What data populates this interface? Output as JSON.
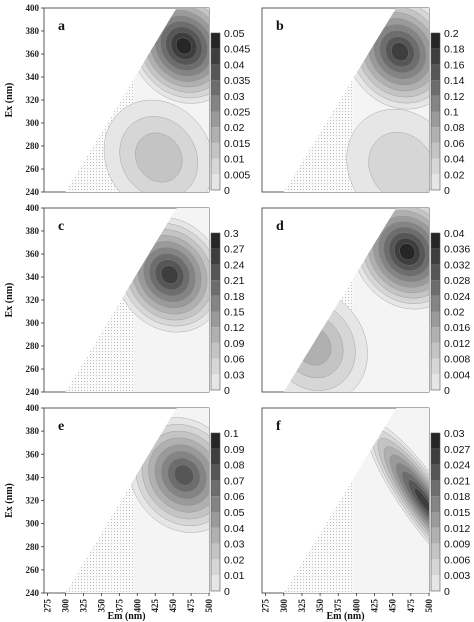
{
  "chart_data": [
    {
      "type": "heatmap",
      "panel": "a",
      "xlabel": "",
      "ylabel": "Ex (nm)",
      "xlim": [
        270,
        500
      ],
      "ylim": [
        240,
        400
      ],
      "yticks": [
        "240",
        "260",
        "280",
        "300",
        "320",
        "340",
        "360",
        "380",
        "400"
      ],
      "xticks": [],
      "colorbar": [
        "0",
        "0.005",
        "0.01",
        "0.015",
        "0.02",
        "0.025",
        "0.03",
        "0.035",
        "0.04",
        "0.045",
        "0.05"
      ],
      "peaks": [
        {
          "em": 465,
          "ex": 367,
          "level": 0.95
        },
        {
          "em": 430,
          "ex": 270,
          "level": 0.25
        }
      ]
    },
    {
      "type": "heatmap",
      "panel": "b",
      "xlabel": "",
      "ylabel": "",
      "xlim": [
        270,
        500
      ],
      "ylim": [
        240,
        400
      ],
      "yticks": [],
      "xticks": [],
      "colorbar": [
        "0",
        "0.02",
        "0.04",
        "0.06",
        "0.08",
        "0.1",
        "0.12",
        "0.14",
        "0.16",
        "0.18",
        "0.2"
      ],
      "peaks": [
        {
          "em": 460,
          "ex": 362,
          "level": 0.9
        },
        {
          "em": 462,
          "ex": 262,
          "level": 0.2
        }
      ]
    },
    {
      "type": "heatmap",
      "panel": "c",
      "xlabel": "",
      "ylabel": "Ex (nm)",
      "xlim": [
        270,
        500
      ],
      "ylim": [
        240,
        400
      ],
      "yticks": [
        "240",
        "260",
        "280",
        "300",
        "320",
        "340",
        "360",
        "380",
        "400"
      ],
      "xticks": [],
      "colorbar": [
        "0",
        "0.03",
        "0.06",
        "0.09",
        "0.12",
        "0.15",
        "0.18",
        "0.21",
        "0.24",
        "0.27",
        "0.3"
      ],
      "peaks": [
        {
          "em": 445,
          "ex": 342,
          "level": 0.85
        }
      ]
    },
    {
      "type": "heatmap",
      "panel": "d",
      "xlabel": "",
      "ylabel": "",
      "xlim": [
        270,
        500
      ],
      "ylim": [
        240,
        400
      ],
      "yticks": [],
      "xticks": [],
      "colorbar": [
        "0",
        "0.004",
        "0.008",
        "0.012",
        "0.016",
        "0.02",
        "0.024",
        "0.028",
        "0.032",
        "0.036",
        "0.04"
      ],
      "peaks": [
        {
          "em": 470,
          "ex": 362,
          "level": 0.97
        },
        {
          "em": 340,
          "ex": 280,
          "level": 0.4
        }
      ]
    },
    {
      "type": "heatmap",
      "panel": "e",
      "xlabel": "Em (nm)",
      "ylabel": "Ex (nm)",
      "xlim": [
        270,
        500
      ],
      "ylim": [
        240,
        400
      ],
      "yticks": [
        "240",
        "260",
        "280",
        "300",
        "320",
        "340",
        "360",
        "380",
        "400"
      ],
      "xticks": [
        "275",
        "300",
        "325",
        "350",
        "375",
        "400",
        "425",
        "450",
        "475",
        "500"
      ],
      "colorbar": [
        "0",
        "0.01",
        "0.02",
        "0.03",
        "0.04",
        "0.05",
        "0.06",
        "0.07",
        "0.08",
        "0.09",
        "0.1"
      ],
      "peaks": [
        {
          "em": 465,
          "ex": 342,
          "level": 0.8
        }
      ]
    },
    {
      "type": "heatmap",
      "panel": "f",
      "xlabel": "Em (nm)",
      "ylabel": "",
      "xlim": [
        270,
        500
      ],
      "ylim": [
        240,
        400
      ],
      "yticks": [],
      "xticks": [
        "275",
        "300",
        "325",
        "350",
        "375",
        "400",
        "425",
        "450",
        "475",
        "500"
      ],
      "colorbar": [
        "0",
        "0.003",
        "0.006",
        "0.009",
        "0.012",
        "0.015",
        "0.018",
        "0.021",
        "0.024",
        "0.027",
        "0.03"
      ],
      "peaks": [
        {
          "em": 492,
          "ex": 320,
          "level": 0.9
        }
      ]
    }
  ],
  "colors": {
    "low": "#f2f2f2",
    "high": "#1a1a1a",
    "speckle": "#bdbdbd"
  }
}
